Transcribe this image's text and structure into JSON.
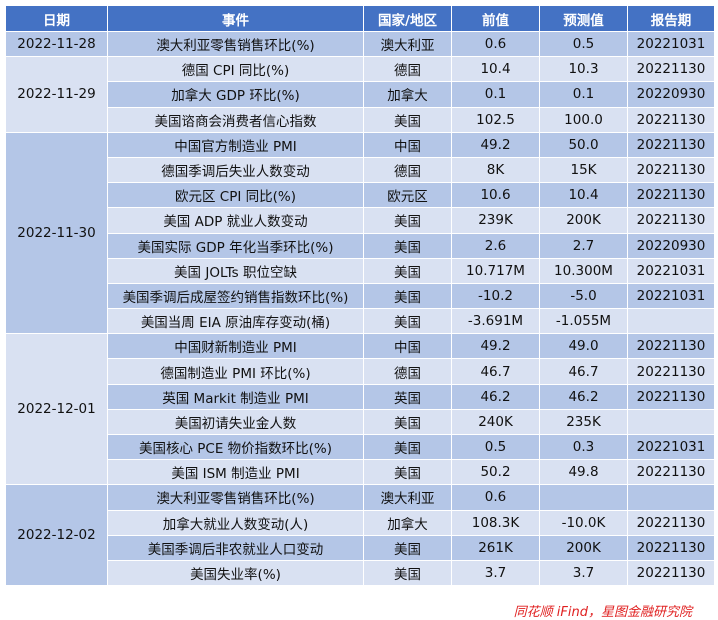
{
  "headers": [
    "日期",
    "事件",
    "国家/地区",
    "前值",
    "预测值",
    "报告期"
  ],
  "groups": [
    {
      "date": "2022-11-28",
      "rows": [
        [
          "澳大利亚零售销售环比(%)",
          "澳大利亚",
          "0.6",
          "0.5",
          "20221031"
        ]
      ]
    },
    {
      "date": "2022-11-29",
      "rows": [
        [
          "德国 CPI 同比(%)",
          "德国",
          "10.4",
          "10.3",
          "20221130"
        ],
        [
          "加拿大 GDP 环比(%)",
          "加拿大",
          "0.1",
          "0.1",
          "20220930"
        ],
        [
          "美国谘商会消费者信心指数",
          "美国",
          "102.5",
          "100.0",
          "20221130"
        ]
      ]
    },
    {
      "date": "2022-11-30",
      "rows": [
        [
          "中国官方制造业 PMI",
          "中国",
          "49.2",
          "50.0",
          "20221130"
        ],
        [
          "德国季调后失业人数变动",
          "德国",
          "8K",
          "15K",
          "20221130"
        ],
        [
          "欧元区 CPI 同比(%)",
          "欧元区",
          "10.6",
          "10.4",
          "20221130"
        ],
        [
          "美国 ADP 就业人数变动",
          "美国",
          "239K",
          "200K",
          "20221130"
        ],
        [
          "美国实际 GDP 年化当季环比(%)",
          "美国",
          "2.6",
          "2.7",
          "20220930"
        ],
        [
          "美国 JOLTs 职位空缺",
          "美国",
          "10.717M",
          "10.300M",
          "20221031"
        ],
        [
          "美国季调后成屋签约销售指数环比(%)",
          "美国",
          "-10.2",
          "-5.0",
          "20221031"
        ],
        [
          "美国当周 EIA 原油库存变动(桶)",
          "美国",
          "-3.691M",
          "-1.055M",
          ""
        ]
      ]
    },
    {
      "date": "2022-12-01",
      "rows": [
        [
          "中国财新制造业 PMI",
          "中国",
          "49.2",
          "49.0",
          "20221130"
        ],
        [
          "德国制造业 PMI 环比(%)",
          "德国",
          "46.7",
          "46.7",
          "20221130"
        ],
        [
          "英国 Markit 制造业 PMI",
          "英国",
          "46.2",
          "46.2",
          "20221130"
        ],
        [
          "美国初请失业金人数",
          "美国",
          "240K",
          "235K",
          ""
        ],
        [
          "美国核心 PCE 物价指数环比(%)",
          "美国",
          "0.5",
          "0.3",
          "20221031"
        ],
        [
          "美国 ISM 制造业 PMI",
          "美国",
          "50.2",
          "49.8",
          "20221130"
        ]
      ]
    },
    {
      "date": "2022-12-02",
      "rows": [
        [
          "澳大利亚零售销售环比(%)",
          "澳大利亚",
          "0.6",
          "",
          ""
        ],
        [
          "加拿大就业人数变动(人)",
          "加拿大",
          "108.3K",
          "-10.0K",
          "20221130"
        ],
        [
          "美国季调后非农就业人口变动",
          "美国",
          "261K",
          "200K",
          "20221130"
        ],
        [
          "美国失业率(%)",
          "美国",
          "3.7",
          "3.7",
          "20221130"
        ]
      ]
    }
  ],
  "source": "同花顺 iFind，星图金融研究院",
  "colors": {
    "header": "#4472C4",
    "row_dark": "#B4C6E7",
    "row_light": "#D9E1F2",
    "source": "#E02020"
  }
}
